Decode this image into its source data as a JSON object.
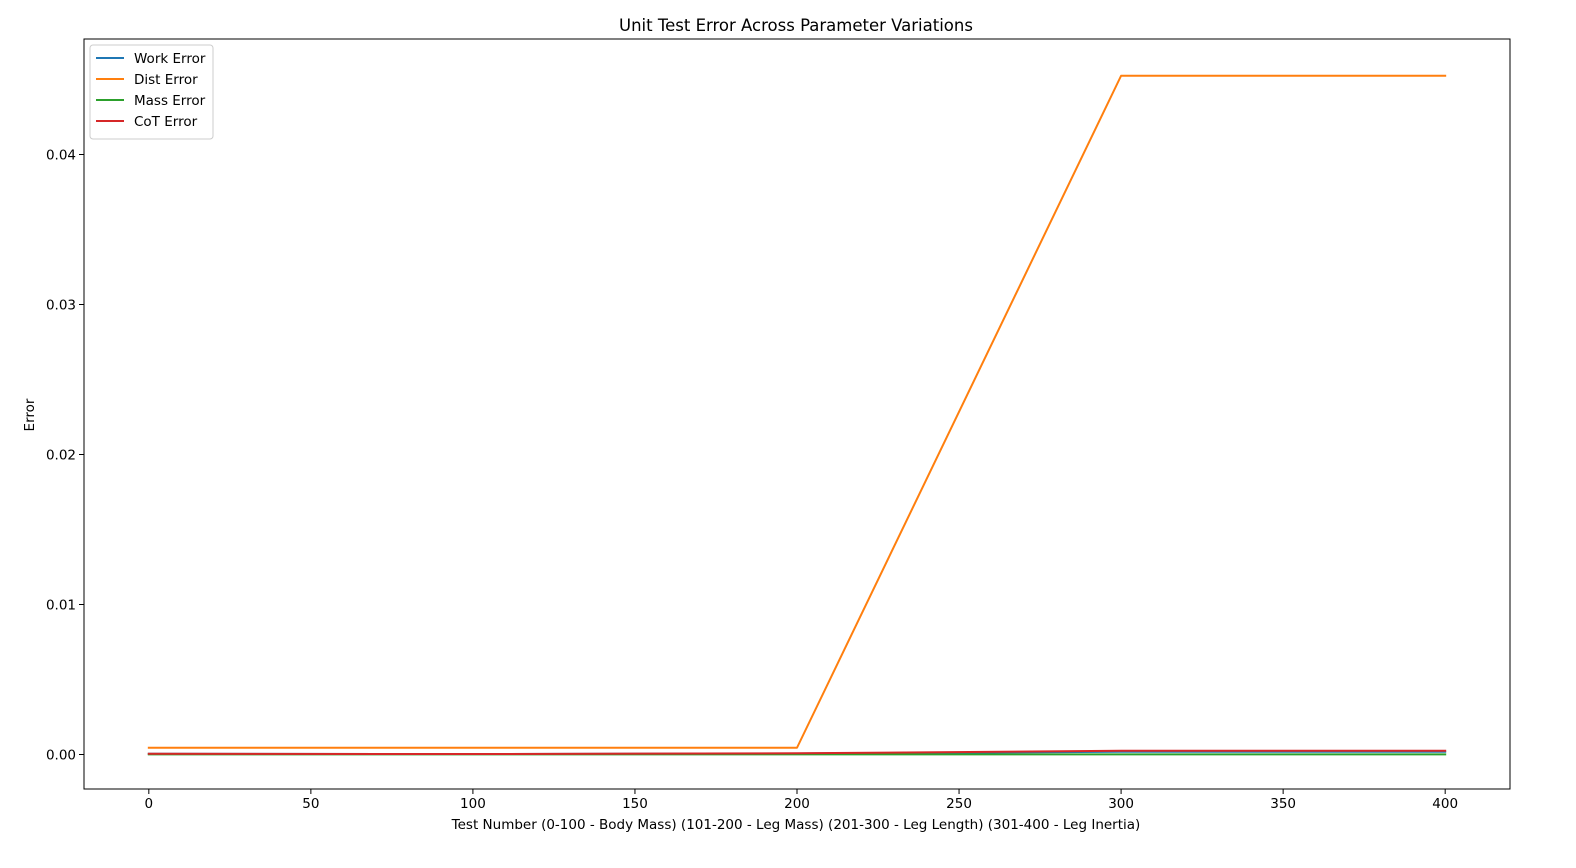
{
  "chart_data": {
    "type": "line",
    "title": "Unit Test Error Across Parameter Variations",
    "xlabel": "Test Number (0-100 - Body Mass) (101-200 - Leg Mass) (201-300 - Leg Length) (301-400 - Leg Inertia)",
    "ylabel": "Error",
    "xlim": [
      -20,
      420
    ],
    "ylim": [
      -0.0023,
      0.0477
    ],
    "xticks": [
      0,
      50,
      100,
      150,
      200,
      250,
      300,
      350,
      400
    ],
    "xtick_labels": [
      "0",
      "50",
      "100",
      "150",
      "200",
      "250",
      "300",
      "350",
      "400"
    ],
    "yticks": [
      0.0,
      0.01,
      0.02,
      0.03,
      0.04
    ],
    "ytick_labels": [
      "0.00",
      "0.01",
      "0.02",
      "0.03",
      "0.04"
    ],
    "grid": false,
    "legend_position": "upper-left",
    "series": [
      {
        "name": "Work Error",
        "color": "#1f77b4",
        "x": [
          0,
          100,
          200,
          300,
          400
        ],
        "values": [
          5e-05,
          3e-05,
          7e-05,
          0.00018,
          0.00018
        ]
      },
      {
        "name": "Dist Error",
        "color": "#ff7f0e",
        "x": [
          0,
          200,
          300,
          400
        ],
        "values": [
          0.00045,
          0.00045,
          0.04525,
          0.04525
        ]
      },
      {
        "name": "Mass Error",
        "color": "#2ca02c",
        "x": [
          0,
          400
        ],
        "values": [
          1e-05,
          1e-05
        ]
      },
      {
        "name": "CoT Error",
        "color": "#d62728",
        "x": [
          0,
          100,
          200,
          300,
          400
        ],
        "values": [
          5e-05,
          3e-05,
          8e-05,
          0.00025,
          0.00025
        ]
      }
    ]
  }
}
